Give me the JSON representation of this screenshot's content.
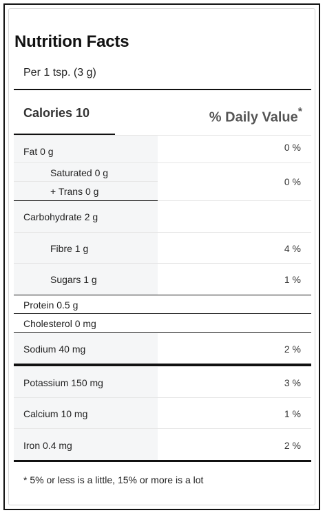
{
  "header": {
    "title": "Nutrition Facts",
    "serving": "Per 1 tsp. (3 g)",
    "calories": "Calories 10",
    "daily_value": "% Daily Value",
    "daily_value_mark": "*"
  },
  "rows": {
    "fat": {
      "label": "Fat 0 g",
      "pct": "0 %"
    },
    "saturated": {
      "label": "Saturated 0 g"
    },
    "trans": {
      "label": "+ Trans 0 g"
    },
    "sat_trans_pct": "0 %",
    "carbohydrate": {
      "label": "Carbohydrate 2 g"
    },
    "fibre": {
      "label": "Fibre 1 g",
      "pct": "4 %"
    },
    "sugars": {
      "label": "Sugars 1 g",
      "pct": "1 %"
    },
    "protein": {
      "label": "Protein 0.5 g"
    },
    "cholesterol": {
      "label": "Cholesterol 0 mg"
    },
    "sodium": {
      "label": "Sodium 40 mg",
      "pct": "2 %"
    },
    "potassium": {
      "label": "Potassium 150 mg",
      "pct": "3 %"
    },
    "calcium": {
      "label": "Calcium 10 mg",
      "pct": "1 %"
    },
    "iron": {
      "label": "Iron 0.4 mg",
      "pct": "2 %"
    }
  },
  "footnote": "* 5% or less is a little, 15% or more is a lot"
}
